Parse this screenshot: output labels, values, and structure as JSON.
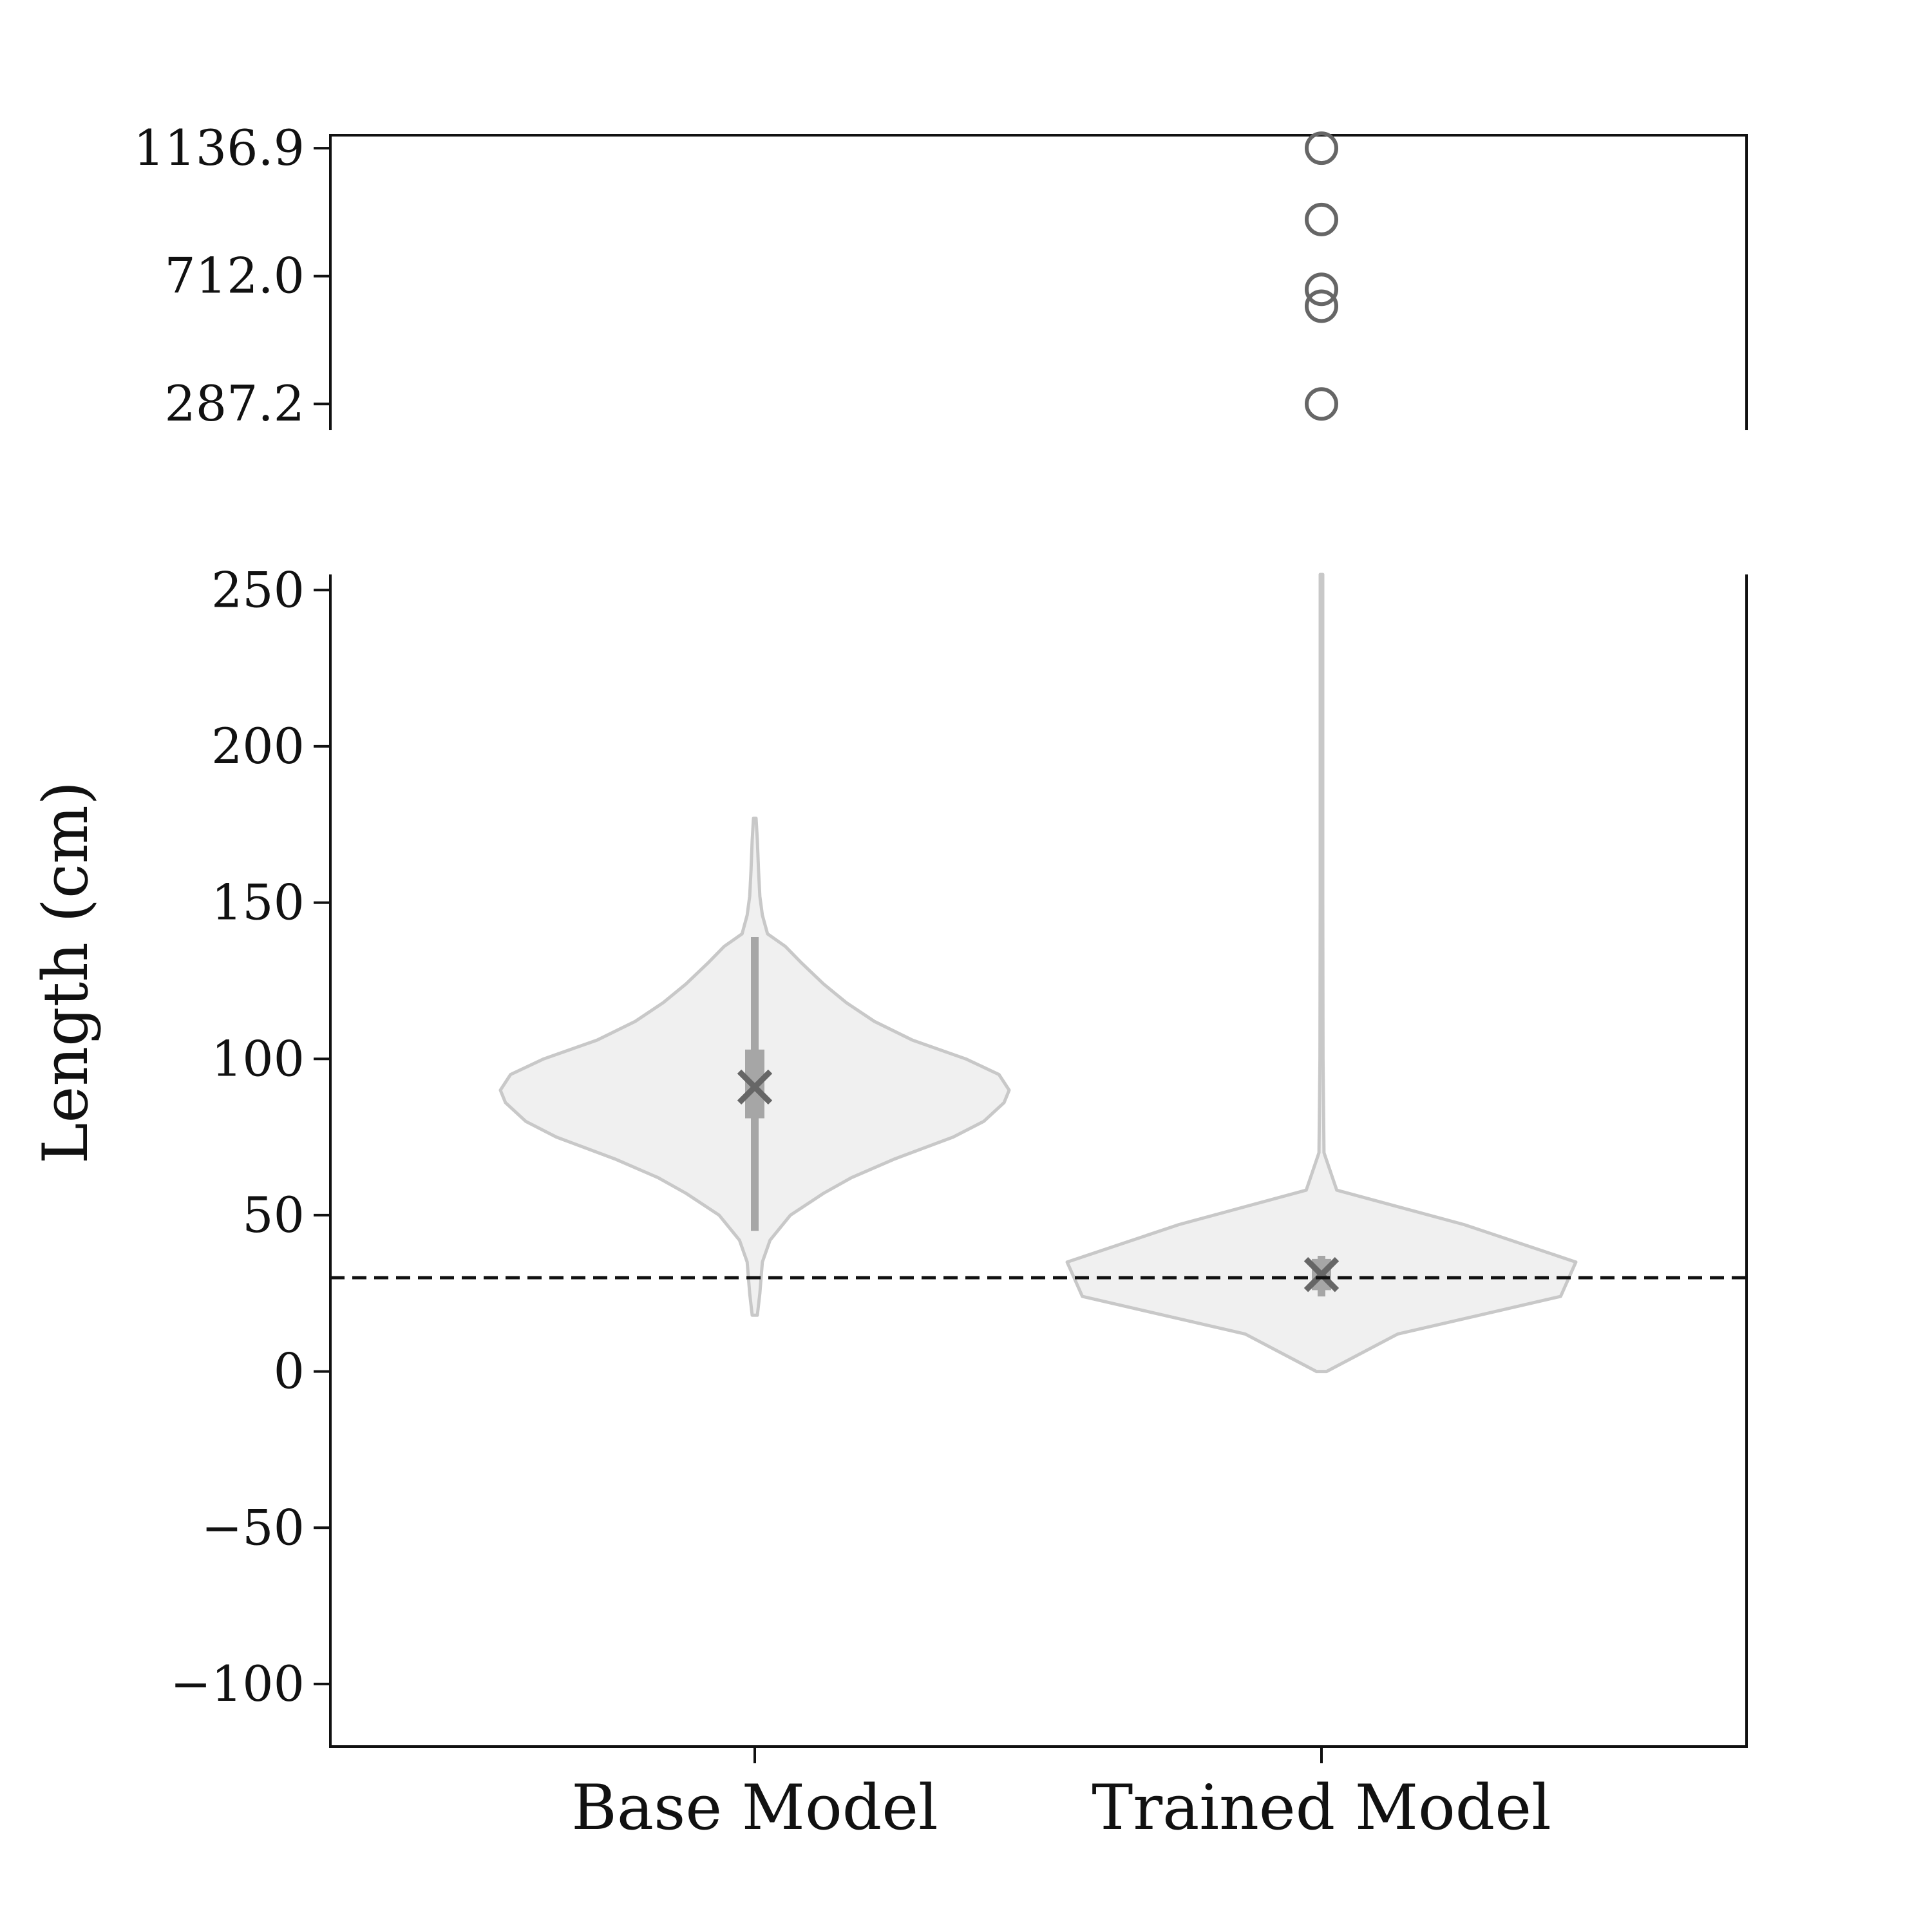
{
  "chart_data": {
    "type": "violin",
    "ylabel": "Length (cm)",
    "categories": [
      "Base Model",
      "Trained Model"
    ],
    "reference_line": {
      "y": 30,
      "style": "dashed"
    },
    "lower_panel": {
      "ylim": [
        -120,
        255
      ],
      "yticks": [
        "−100",
        "−50",
        "0",
        "50",
        "100",
        "150",
        "200",
        "250"
      ],
      "ytick_values": [
        -100,
        -50,
        0,
        50,
        100,
        150,
        200,
        250
      ]
    },
    "upper_panel": {
      "ylim": [
        200,
        1180
      ],
      "yticks": [
        "287.2",
        "712.0",
        "1136.9"
      ],
      "ytick_values": [
        287.2,
        712.0,
        1136.9
      ]
    },
    "series": [
      {
        "name": "Base Model",
        "mean": 91,
        "median": 92,
        "q1": 81,
        "q3": 103,
        "whisker_low": 45,
        "whisker_high": 139,
        "min": 18,
        "max": 177,
        "density_profile": [
          [
            18,
            0.01
          ],
          [
            25,
            0.02
          ],
          [
            35,
            0.03
          ],
          [
            42,
            0.06
          ],
          [
            50,
            0.14
          ],
          [
            57,
            0.27
          ],
          [
            62,
            0.38
          ],
          [
            68,
            0.55
          ],
          [
            75,
            0.78
          ],
          [
            80,
            0.9
          ],
          [
            86,
            0.98
          ],
          [
            90,
            1.0
          ],
          [
            95,
            0.96
          ],
          [
            100,
            0.83
          ],
          [
            106,
            0.62
          ],
          [
            112,
            0.47
          ],
          [
            118,
            0.36
          ],
          [
            124,
            0.27
          ],
          [
            131,
            0.18
          ],
          [
            136,
            0.12
          ],
          [
            140,
            0.05
          ],
          [
            146,
            0.03
          ],
          [
            152,
            0.02
          ],
          [
            160,
            0.015
          ],
          [
            170,
            0.01
          ],
          [
            177,
            0.005
          ]
        ]
      },
      {
        "name": "Trained Model",
        "mean": 31,
        "median": 31,
        "q1": 26,
        "q3": 36,
        "whisker_low": 24,
        "whisker_high": 37,
        "min": 0,
        "max": 1136.9,
        "outliers": [
          287.2,
          612,
          668,
          900,
          1136.9
        ],
        "density_profile": [
          [
            0,
            0.02
          ],
          [
            12,
            0.3
          ],
          [
            24,
            0.94
          ],
          [
            35,
            1.0
          ],
          [
            47,
            0.56
          ],
          [
            58,
            0.06
          ],
          [
            70,
            0.01
          ],
          [
            100,
            0.006
          ],
          [
            150,
            0.005
          ],
          [
            200,
            0.005
          ],
          [
            255,
            0.005
          ]
        ]
      }
    ]
  }
}
